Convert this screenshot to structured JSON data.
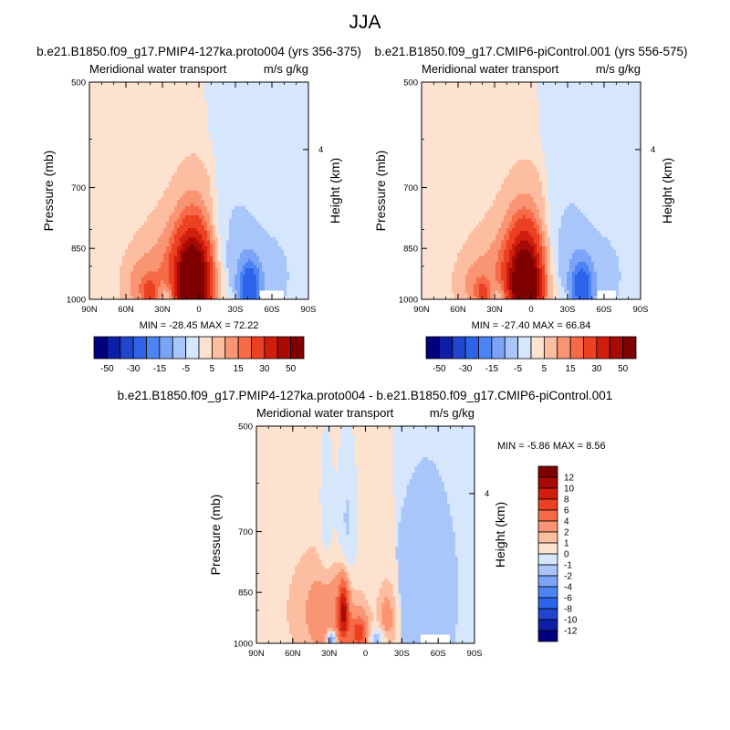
{
  "figure": {
    "title": "JJA"
  },
  "chart_data": [
    {
      "type": "heatmap",
      "title": "b.e21.B1850.f09_g17.PMIP4-127ka.proto004 (yrs 356-375)",
      "left_subtitle": "Meridional water transport",
      "right_subtitle": "m/s g/kg",
      "ylabel": "Pressure (mb)",
      "right_ylabel": "Height (km)",
      "x_ticks": [
        "90N",
        "60N",
        "30N",
        "0",
        "30S",
        "60S",
        "90S"
      ],
      "x_values": [
        90,
        60,
        30,
        0,
        -30,
        -60,
        -90
      ],
      "y_ticks": [
        "500",
        "700",
        "850",
        "1000"
      ],
      "y_values": [
        500,
        700,
        850,
        1000
      ],
      "right_y_ticks": [
        "4"
      ],
      "right_y_values": [
        4
      ],
      "ylim": [
        1000,
        500
      ],
      "xlim": [
        90,
        -90
      ],
      "stats_text": "MIN = -28.45  MAX = 72.22",
      "min": -28.45,
      "max": 72.22,
      "colorbar": {
        "orientation": "horizontal",
        "label_text": [
          "-50",
          "-30",
          "-15",
          "-5",
          "5",
          "15",
          "30",
          "50"
        ],
        "colors": [
          "#00007f",
          "#0d1fa6",
          "#1f46cc",
          "#2c63e8",
          "#4d84f4",
          "#7ba4f8",
          "#a9c6fb",
          "#d5e6fd",
          "#fde2cf",
          "#fcbda1",
          "#fa9573",
          "#f66a47",
          "#ec4023",
          "#cf1e0c",
          "#a80a04",
          "#7f0000"
        ]
      },
      "field": {
        "blobs": [
          {
            "lat": 5,
            "p": 955,
            "slat": 9,
            "sp": 95,
            "amp": 72
          },
          {
            "lat": 2,
            "p": 900,
            "slat": 18,
            "sp": 170,
            "amp": 12
          },
          {
            "lat": 30,
            "p": 930,
            "slat": 22,
            "sp": 110,
            "amp": 9
          },
          {
            "lat": 48,
            "p": 960,
            "slat": 10,
            "sp": 60,
            "amp": 6
          },
          {
            "lat": -25,
            "p": 880,
            "slat": 14,
            "sp": 140,
            "amp": -8
          },
          {
            "lat": -42,
            "p": 965,
            "slat": 6,
            "sp": 55,
            "amp": -22
          },
          {
            "lat": -58,
            "p": 930,
            "slat": 18,
            "sp": 120,
            "amp": -5
          },
          {
            "lat": 25,
            "p": 985,
            "slat": 5,
            "sp": 25,
            "amp": -10
          },
          {
            "lat": 40,
            "p": 985,
            "slat": 4,
            "sp": 30,
            "amp": 14
          }
        ],
        "background_positive": 1.5,
        "background_negative": -1.5,
        "boundary_lat": [
          {
            "p": 500,
            "lat": -5
          },
          {
            "p": 650,
            "lat": -8
          },
          {
            "p": 780,
            "lat": -12
          },
          {
            "p": 880,
            "lat": -18
          },
          {
            "p": 1000,
            "lat": -30
          }
        ],
        "missing_region": {
          "lat_from": -50,
          "lat_to": -70,
          "p_from": 970,
          "p_to": 1000
        }
      }
    },
    {
      "type": "heatmap",
      "title": "b.e21.B1850.f09_g17.CMIP6-piControl.001 (yrs 556-575)",
      "left_subtitle": "Meridional water transport",
      "right_subtitle": "m/s g/kg",
      "ylabel": "Pressure (mb)",
      "right_ylabel": "Height (km)",
      "x_ticks": [
        "90N",
        "60N",
        "30N",
        "0",
        "30S",
        "60S",
        "90S"
      ],
      "x_values": [
        90,
        60,
        30,
        0,
        -30,
        -60,
        -90
      ],
      "y_ticks": [
        "500",
        "700",
        "850",
        "1000"
      ],
      "y_values": [
        500,
        700,
        850,
        1000
      ],
      "right_y_ticks": [
        "4"
      ],
      "right_y_values": [
        4
      ],
      "ylim": [
        1000,
        500
      ],
      "xlim": [
        90,
        -90
      ],
      "stats_text": "MIN = -27.40  MAX = 66.84",
      "min": -27.4,
      "max": 66.84,
      "colorbar": {
        "orientation": "horizontal",
        "label_text": [
          "-50",
          "-30",
          "-15",
          "-5",
          "5",
          "15",
          "30",
          "50"
        ],
        "colors": [
          "#00007f",
          "#0d1fa6",
          "#1f46cc",
          "#2c63e8",
          "#4d84f4",
          "#7ba4f8",
          "#a9c6fb",
          "#d5e6fd",
          "#fde2cf",
          "#fcbda1",
          "#fa9573",
          "#f66a47",
          "#ec4023",
          "#cf1e0c",
          "#a80a04",
          "#7f0000"
        ]
      },
      "field": {
        "blobs": [
          {
            "lat": 5,
            "p": 955,
            "slat": 9,
            "sp": 95,
            "amp": 66
          },
          {
            "lat": 2,
            "p": 900,
            "slat": 18,
            "sp": 170,
            "amp": 11
          },
          {
            "lat": 30,
            "p": 930,
            "slat": 22,
            "sp": 110,
            "amp": 8
          },
          {
            "lat": 48,
            "p": 960,
            "slat": 10,
            "sp": 60,
            "amp": 5
          },
          {
            "lat": -25,
            "p": 880,
            "slat": 14,
            "sp": 140,
            "amp": -8
          },
          {
            "lat": -42,
            "p": 965,
            "slat": 6,
            "sp": 55,
            "amp": -21
          },
          {
            "lat": -58,
            "p": 930,
            "slat": 18,
            "sp": 120,
            "amp": -5
          },
          {
            "lat": 25,
            "p": 985,
            "slat": 5,
            "sp": 25,
            "amp": -8
          },
          {
            "lat": 40,
            "p": 985,
            "slat": 4,
            "sp": 30,
            "amp": 12
          }
        ],
        "background_positive": 1.5,
        "background_negative": -1.5,
        "boundary_lat": [
          {
            "p": 500,
            "lat": -5
          },
          {
            "p": 650,
            "lat": -8
          },
          {
            "p": 780,
            "lat": -12
          },
          {
            "p": 880,
            "lat": -18
          },
          {
            "p": 1000,
            "lat": -30
          }
        ],
        "missing_region": {
          "lat_from": -55,
          "lat_to": -70,
          "p_from": 970,
          "p_to": 1000
        }
      }
    },
    {
      "type": "heatmap",
      "title": "b.e21.B1850.f09_g17.PMIP4-127ka.proto004 - b.e21.B1850.f09_g17.CMIP6-piControl.001",
      "left_subtitle": "Meridional water transport",
      "right_subtitle": "m/s g/kg",
      "ylabel": "Pressure (mb)",
      "right_ylabel": "Height (km)",
      "x_ticks": [
        "90N",
        "60N",
        "30N",
        "0",
        "30S",
        "60S",
        "90S"
      ],
      "x_values": [
        90,
        60,
        30,
        0,
        -30,
        -60,
        -90
      ],
      "y_ticks": [
        "500",
        "700",
        "850",
        "1000"
      ],
      "y_values": [
        500,
        700,
        850,
        1000
      ],
      "right_y_ticks": [
        "4"
      ],
      "right_y_values": [
        4
      ],
      "ylim": [
        1000,
        500
      ],
      "xlim": [
        90,
        -90
      ],
      "stats_text": "MIN =  -5.86  MAX =   8.56",
      "min": -5.86,
      "max": 8.56,
      "colorbar": {
        "orientation": "vertical",
        "label_text": [
          "12",
          "10",
          "8",
          "6",
          "4",
          "2",
          "1",
          "0",
          "-1",
          "-2",
          "-4",
          "-6",
          "-8",
          "-10",
          "-12"
        ],
        "colors": [
          "#7f0000",
          "#a80a04",
          "#cf1e0c",
          "#ec4023",
          "#f66a47",
          "#fa9573",
          "#fcbda1",
          "#fde2cf",
          "#d5e6fd",
          "#a9c6fb",
          "#7ba4f8",
          "#4d84f4",
          "#2c63e8",
          "#1f46cc",
          "#0d1fa6",
          "#00007f"
        ]
      },
      "field": {
        "blobs": [
          {
            "lat": 18,
            "p": 900,
            "slat": 3,
            "sp": 60,
            "amp": 8.5
          },
          {
            "lat": 5,
            "p": 970,
            "slat": 5,
            "sp": 40,
            "amp": 6
          },
          {
            "lat": 28,
            "p": 985,
            "slat": 3,
            "sp": 20,
            "amp": -5.8
          },
          {
            "lat": 22,
            "p": 930,
            "slat": 12,
            "sp": 90,
            "amp": 2.5
          },
          {
            "lat": 40,
            "p": 900,
            "slat": 15,
            "sp": 100,
            "amp": 1.5
          },
          {
            "lat": 15,
            "p": 700,
            "slat": 6,
            "sp": 150,
            "amp": -1.8
          },
          {
            "lat": 32,
            "p": 650,
            "slat": 4,
            "sp": 120,
            "amp": -1.5
          },
          {
            "lat": -18,
            "p": 930,
            "slat": 5,
            "sp": 70,
            "amp": 2.5
          },
          {
            "lat": -10,
            "p": 985,
            "slat": 6,
            "sp": 25,
            "amp": -2.5
          },
          {
            "lat": -50,
            "p": 850,
            "slat": 18,
            "sp": 200,
            "amp": -1.2
          }
        ],
        "background_positive": 0.6,
        "background_negative": -0.6,
        "boundary_lat": [
          {
            "p": 500,
            "lat": -22
          },
          {
            "p": 650,
            "lat": -24
          },
          {
            "p": 780,
            "lat": -26
          },
          {
            "p": 880,
            "lat": -28
          },
          {
            "p": 1000,
            "lat": -30
          }
        ],
        "missing_region": {
          "lat_from": -45,
          "lat_to": -70,
          "p_from": 975,
          "p_to": 1000
        }
      }
    }
  ]
}
